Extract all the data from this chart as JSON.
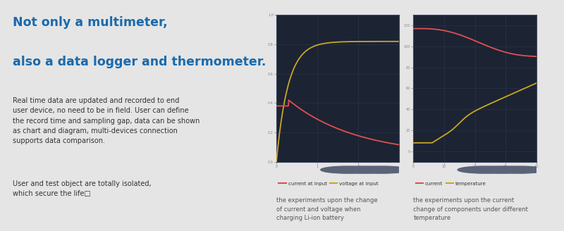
{
  "bg_color": "#e5e5e5",
  "chart_bg": "#1c2333",
  "grid_color": "#2d3a50",
  "title_line1": "Not only a multimeter,",
  "title_line2": "also a data logger and thermometer.",
  "title_color": "#1a6aad",
  "body_text": "Real time data are updated and recorded to end\nuser device, no need to be in field. User can define\nthe record time and sampling gap, data can be shown\nas chart and diagram, multi-devices connection\nsupports data comparison.",
  "body_text2": "User and test object are totally isolated,\nwhich secure the life□",
  "body_color": "#333333",
  "legend1_items": [
    {
      "label": "current at input",
      "color": "#e05050"
    },
    {
      "label": "voltage at input",
      "color": "#c8a820"
    }
  ],
  "legend2_items": [
    {
      "label": "current",
      "color": "#e05050"
    },
    {
      "label": "temperature",
      "color": "#c8a820"
    }
  ],
  "caption1": "the experiments upon the change\nof current and voltage when\ncharging Li-ion battery",
  "caption2": "the experiments upon the current\nchange of components under different\ntemperature",
  "caption_color": "#555555",
  "nav_bar_color": "#2a3245",
  "nav_dot_color": "#5a6378"
}
